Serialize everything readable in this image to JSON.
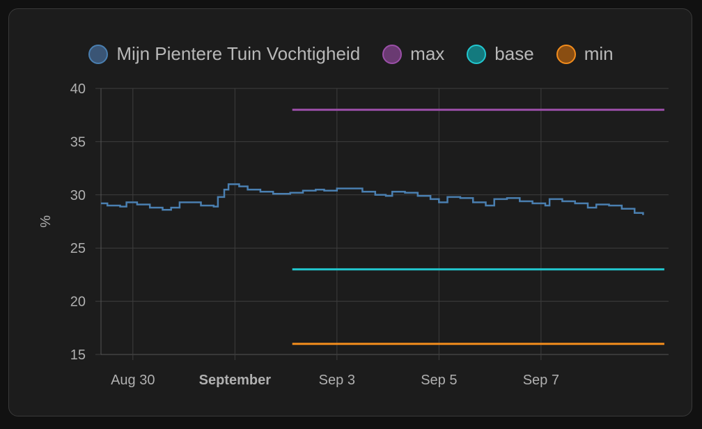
{
  "chart_data": {
    "type": "line",
    "ylabel": "%",
    "ylim": [
      15,
      40
    ],
    "yticks": [
      15,
      20,
      25,
      30,
      35,
      40
    ],
    "xrange_days": [
      "2024-08-29T09:00",
      "2024-09-08T06:00"
    ],
    "xticks": [
      {
        "label": "Aug 30",
        "date": "2024-08-30",
        "bold": false
      },
      {
        "label": "September",
        "date": "2024-09-01",
        "bold": true
      },
      {
        "label": "Sep 3",
        "date": "2024-09-03",
        "bold": false
      },
      {
        "label": "Sep 5",
        "date": "2024-09-05",
        "bold": false
      },
      {
        "label": "Sep 7",
        "date": "2024-09-07",
        "bold": false
      }
    ],
    "grid": true,
    "legend_position": "top-center",
    "series": [
      {
        "name": "Mijn Pientere Tuin Vochtigheid",
        "color": "#4a7fb0",
        "points": [
          [
            "2024-08-29T09:00",
            29.2
          ],
          [
            "2024-08-29T12:00",
            29.0
          ],
          [
            "2024-08-29T18:00",
            28.9
          ],
          [
            "2024-08-29T21:00",
            29.3
          ],
          [
            "2024-08-30T02:00",
            29.1
          ],
          [
            "2024-08-30T08:00",
            28.8
          ],
          [
            "2024-08-30T14:00",
            28.6
          ],
          [
            "2024-08-30T18:00",
            28.8
          ],
          [
            "2024-08-30T22:00",
            29.3
          ],
          [
            "2024-08-31T04:00",
            29.3
          ],
          [
            "2024-08-31T08:00",
            29.0
          ],
          [
            "2024-08-31T14:00",
            28.9
          ],
          [
            "2024-08-31T16:00",
            29.8
          ],
          [
            "2024-08-31T19:00",
            30.5
          ],
          [
            "2024-08-31T21:00",
            31.0
          ],
          [
            "2024-09-01T02:00",
            30.8
          ],
          [
            "2024-09-01T06:00",
            30.5
          ],
          [
            "2024-09-01T12:00",
            30.3
          ],
          [
            "2024-09-01T18:00",
            30.1
          ],
          [
            "2024-09-02T02:00",
            30.2
          ],
          [
            "2024-09-02T08:00",
            30.4
          ],
          [
            "2024-09-02T14:00",
            30.5
          ],
          [
            "2024-09-02T18:00",
            30.4
          ],
          [
            "2024-09-03T00:00",
            30.6
          ],
          [
            "2024-09-03T06:00",
            30.6
          ],
          [
            "2024-09-03T12:00",
            30.3
          ],
          [
            "2024-09-03T18:00",
            30.0
          ],
          [
            "2024-09-03T23:00",
            29.9
          ],
          [
            "2024-09-04T02:00",
            30.3
          ],
          [
            "2024-09-04T08:00",
            30.2
          ],
          [
            "2024-09-04T14:00",
            29.9
          ],
          [
            "2024-09-04T20:00",
            29.6
          ],
          [
            "2024-09-05T00:00",
            29.3
          ],
          [
            "2024-09-05T04:00",
            29.8
          ],
          [
            "2024-09-05T10:00",
            29.7
          ],
          [
            "2024-09-05T16:00",
            29.3
          ],
          [
            "2024-09-05T22:00",
            29.0
          ],
          [
            "2024-09-06T02:00",
            29.6
          ],
          [
            "2024-09-06T08:00",
            29.7
          ],
          [
            "2024-09-06T14:00",
            29.4
          ],
          [
            "2024-09-06T20:00",
            29.2
          ],
          [
            "2024-09-07T02:00",
            29.0
          ],
          [
            "2024-09-07T04:00",
            29.6
          ],
          [
            "2024-09-07T10:00",
            29.4
          ],
          [
            "2024-09-07T16:00",
            29.2
          ],
          [
            "2024-09-07T22:00",
            28.8
          ],
          [
            "2024-09-08T02:00",
            29.1
          ],
          [
            "2024-09-08T08:00",
            29.0
          ],
          [
            "2024-09-08T14:00",
            28.7
          ],
          [
            "2024-09-08T20:00",
            28.3
          ],
          [
            "2024-09-09T00:00",
            28.1
          ]
        ]
      },
      {
        "name": "max",
        "color": "#9b4fa8",
        "points": [
          [
            "2024-09-02T03:00",
            38
          ],
          [
            "2024-09-09T10:00",
            38
          ]
        ]
      },
      {
        "name": "base",
        "color": "#22c7cf",
        "points": [
          [
            "2024-09-02T03:00",
            23
          ],
          [
            "2024-09-09T10:00",
            23
          ]
        ]
      },
      {
        "name": "min",
        "color": "#f28c1c",
        "points": [
          [
            "2024-09-02T03:00",
            16
          ],
          [
            "2024-09-09T10:00",
            16
          ]
        ]
      }
    ]
  },
  "legend": [
    {
      "label": "Mijn Pientere Tuin Vochtigheid",
      "fill": "#3a5575",
      "stroke": "#4a7fb0"
    },
    {
      "label": "max",
      "fill": "#6a3a72",
      "stroke": "#9b4fa8"
    },
    {
      "label": "base",
      "fill": "#137a7e",
      "stroke": "#22c7cf"
    },
    {
      "label": "min",
      "fill": "#8a4e12",
      "stroke": "#f28c1c"
    }
  ]
}
